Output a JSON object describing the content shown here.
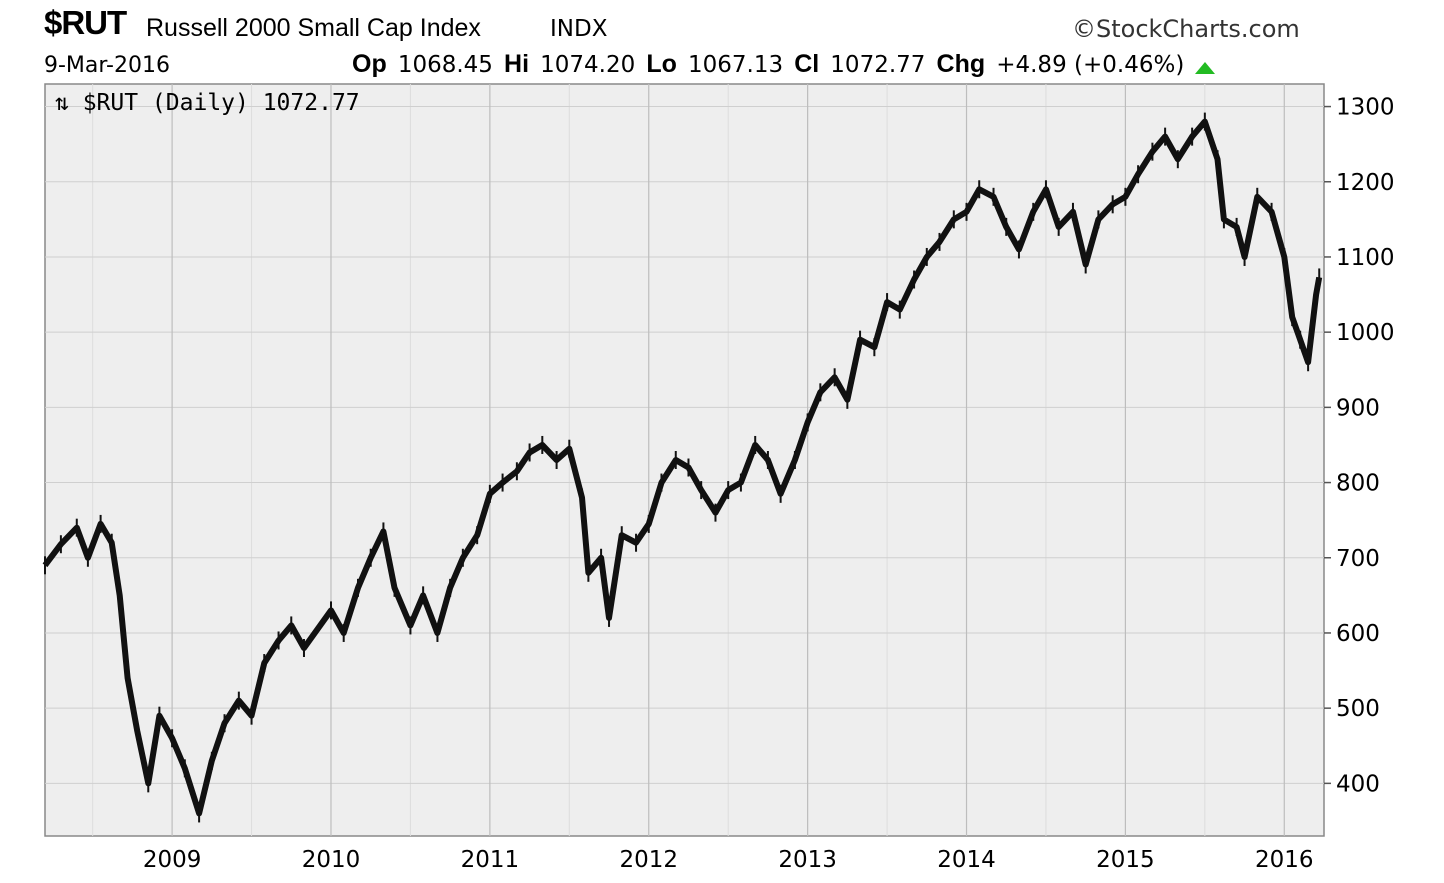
{
  "header": {
    "symbol": "$RUT",
    "name": "Russell 2000 Small Cap Index",
    "exchange": "INDX",
    "brand": "StockCharts.com",
    "date": "9-Mar-2016",
    "op_label": "Op",
    "op_value": "1068.45",
    "hi_label": "Hi",
    "hi_value": "1074.20",
    "lo_label": "Lo",
    "lo_value": "1067.13",
    "cl_label": "Cl",
    "cl_value": "1072.77",
    "chg_label": "Chg",
    "chg_value": "+4.89 (+0.46%)",
    "up_color": "#22bb22"
  },
  "chart_data": {
    "type": "line",
    "title": "$RUT (Daily) 1072.77",
    "x_ticks": [
      "2009",
      "2010",
      "2011",
      "2012",
      "2013",
      "2014",
      "2015",
      "2016"
    ],
    "y_ticks": [
      "1300",
      "1200",
      "1100",
      "1000",
      "900",
      "800",
      "700",
      "600",
      "500",
      "400"
    ],
    "ylim": [
      330,
      1330
    ],
    "xlim": [
      2008.2,
      2016.25
    ],
    "grid": true,
    "series": [
      {
        "values": [
          [
            2008.2,
            690
          ],
          [
            2008.3,
            718
          ],
          [
            2008.4,
            740
          ],
          [
            2008.47,
            700
          ],
          [
            2008.55,
            745
          ],
          [
            2008.62,
            720
          ],
          [
            2008.67,
            650
          ],
          [
            2008.72,
            540
          ],
          [
            2008.78,
            470
          ],
          [
            2008.85,
            400
          ],
          [
            2008.92,
            490
          ],
          [
            2009.0,
            460
          ],
          [
            2009.08,
            420
          ],
          [
            2009.17,
            360
          ],
          [
            2009.25,
            430
          ],
          [
            2009.33,
            480
          ],
          [
            2009.42,
            510
          ],
          [
            2009.5,
            490
          ],
          [
            2009.58,
            560
          ],
          [
            2009.67,
            590
          ],
          [
            2009.75,
            610
          ],
          [
            2009.83,
            580
          ],
          [
            2010.0,
            630
          ],
          [
            2010.08,
            600
          ],
          [
            2010.17,
            660
          ],
          [
            2010.25,
            700
          ],
          [
            2010.33,
            735
          ],
          [
            2010.4,
            660
          ],
          [
            2010.5,
            610
          ],
          [
            2010.58,
            650
          ],
          [
            2010.67,
            600
          ],
          [
            2010.75,
            660
          ],
          [
            2010.83,
            700
          ],
          [
            2010.92,
            730
          ],
          [
            2011.0,
            785
          ],
          [
            2011.08,
            800
          ],
          [
            2011.17,
            815
          ],
          [
            2011.25,
            840
          ],
          [
            2011.33,
            850
          ],
          [
            2011.42,
            830
          ],
          [
            2011.5,
            845
          ],
          [
            2011.58,
            780
          ],
          [
            2011.62,
            680
          ],
          [
            2011.7,
            700
          ],
          [
            2011.75,
            620
          ],
          [
            2011.83,
            730
          ],
          [
            2011.92,
            720
          ],
          [
            2012.0,
            745
          ],
          [
            2012.08,
            800
          ],
          [
            2012.17,
            830
          ],
          [
            2012.25,
            820
          ],
          [
            2012.33,
            790
          ],
          [
            2012.42,
            760
          ],
          [
            2012.5,
            790
          ],
          [
            2012.58,
            800
          ],
          [
            2012.67,
            850
          ],
          [
            2012.75,
            830
          ],
          [
            2012.83,
            785
          ],
          [
            2012.92,
            830
          ],
          [
            2013.0,
            880
          ],
          [
            2013.08,
            920
          ],
          [
            2013.17,
            940
          ],
          [
            2013.25,
            910
          ],
          [
            2013.33,
            990
          ],
          [
            2013.42,
            980
          ],
          [
            2013.5,
            1040
          ],
          [
            2013.58,
            1030
          ],
          [
            2013.67,
            1070
          ],
          [
            2013.75,
            1100
          ],
          [
            2013.83,
            1120
          ],
          [
            2013.92,
            1150
          ],
          [
            2014.0,
            1160
          ],
          [
            2014.08,
            1190
          ],
          [
            2014.17,
            1180
          ],
          [
            2014.25,
            1140
          ],
          [
            2014.33,
            1110
          ],
          [
            2014.42,
            1160
          ],
          [
            2014.5,
            1190
          ],
          [
            2014.58,
            1140
          ],
          [
            2014.67,
            1160
          ],
          [
            2014.75,
            1090
          ],
          [
            2014.83,
            1150
          ],
          [
            2014.92,
            1170
          ],
          [
            2015.0,
            1180
          ],
          [
            2015.08,
            1210
          ],
          [
            2015.17,
            1240
          ],
          [
            2015.25,
            1260
          ],
          [
            2015.33,
            1230
          ],
          [
            2015.42,
            1260
          ],
          [
            2015.5,
            1280
          ],
          [
            2015.58,
            1230
          ],
          [
            2015.62,
            1150
          ],
          [
            2015.7,
            1140
          ],
          [
            2015.75,
            1100
          ],
          [
            2015.83,
            1180
          ],
          [
            2015.92,
            1160
          ],
          [
            2016.0,
            1100
          ],
          [
            2016.05,
            1020
          ],
          [
            2016.1,
            990
          ],
          [
            2016.15,
            960
          ],
          [
            2016.2,
            1050
          ],
          [
            2016.22,
            1072.77
          ]
        ]
      }
    ]
  }
}
